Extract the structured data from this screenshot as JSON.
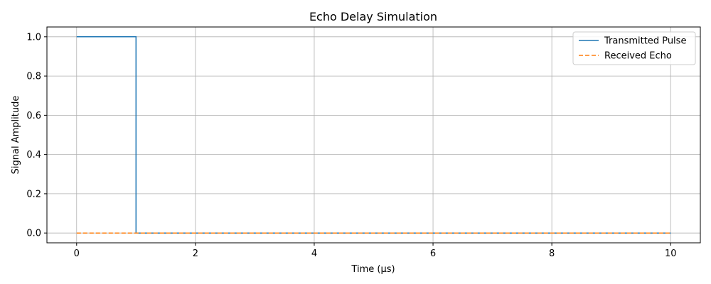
{
  "chart_data": {
    "type": "line",
    "title": "Echo Delay Simulation",
    "xlabel": "Time (µs)",
    "ylabel": "Signal Amplitude",
    "xlim": [
      -0.5,
      10.5
    ],
    "ylim": [
      -0.05,
      1.05
    ],
    "xticks": [
      0,
      2,
      4,
      6,
      8,
      10
    ],
    "yticks": [
      0.0,
      0.2,
      0.4,
      0.6,
      0.8,
      1.0
    ],
    "ytick_labels": [
      "0.0",
      "0.2",
      "0.4",
      "0.6",
      "0.8",
      "1.0"
    ],
    "grid": true,
    "legend_position": "top-right",
    "series": [
      {
        "name": "Transmitted Pulse",
        "color": "#1f77b4",
        "style": "solid",
        "x": [
          0,
          1,
          1,
          10
        ],
        "y": [
          1,
          1,
          0,
          0
        ]
      },
      {
        "name": "Received Echo",
        "color": "#ff7f0e",
        "style": "dashed",
        "x": [
          0,
          10
        ],
        "y": [
          0,
          0
        ]
      }
    ]
  }
}
